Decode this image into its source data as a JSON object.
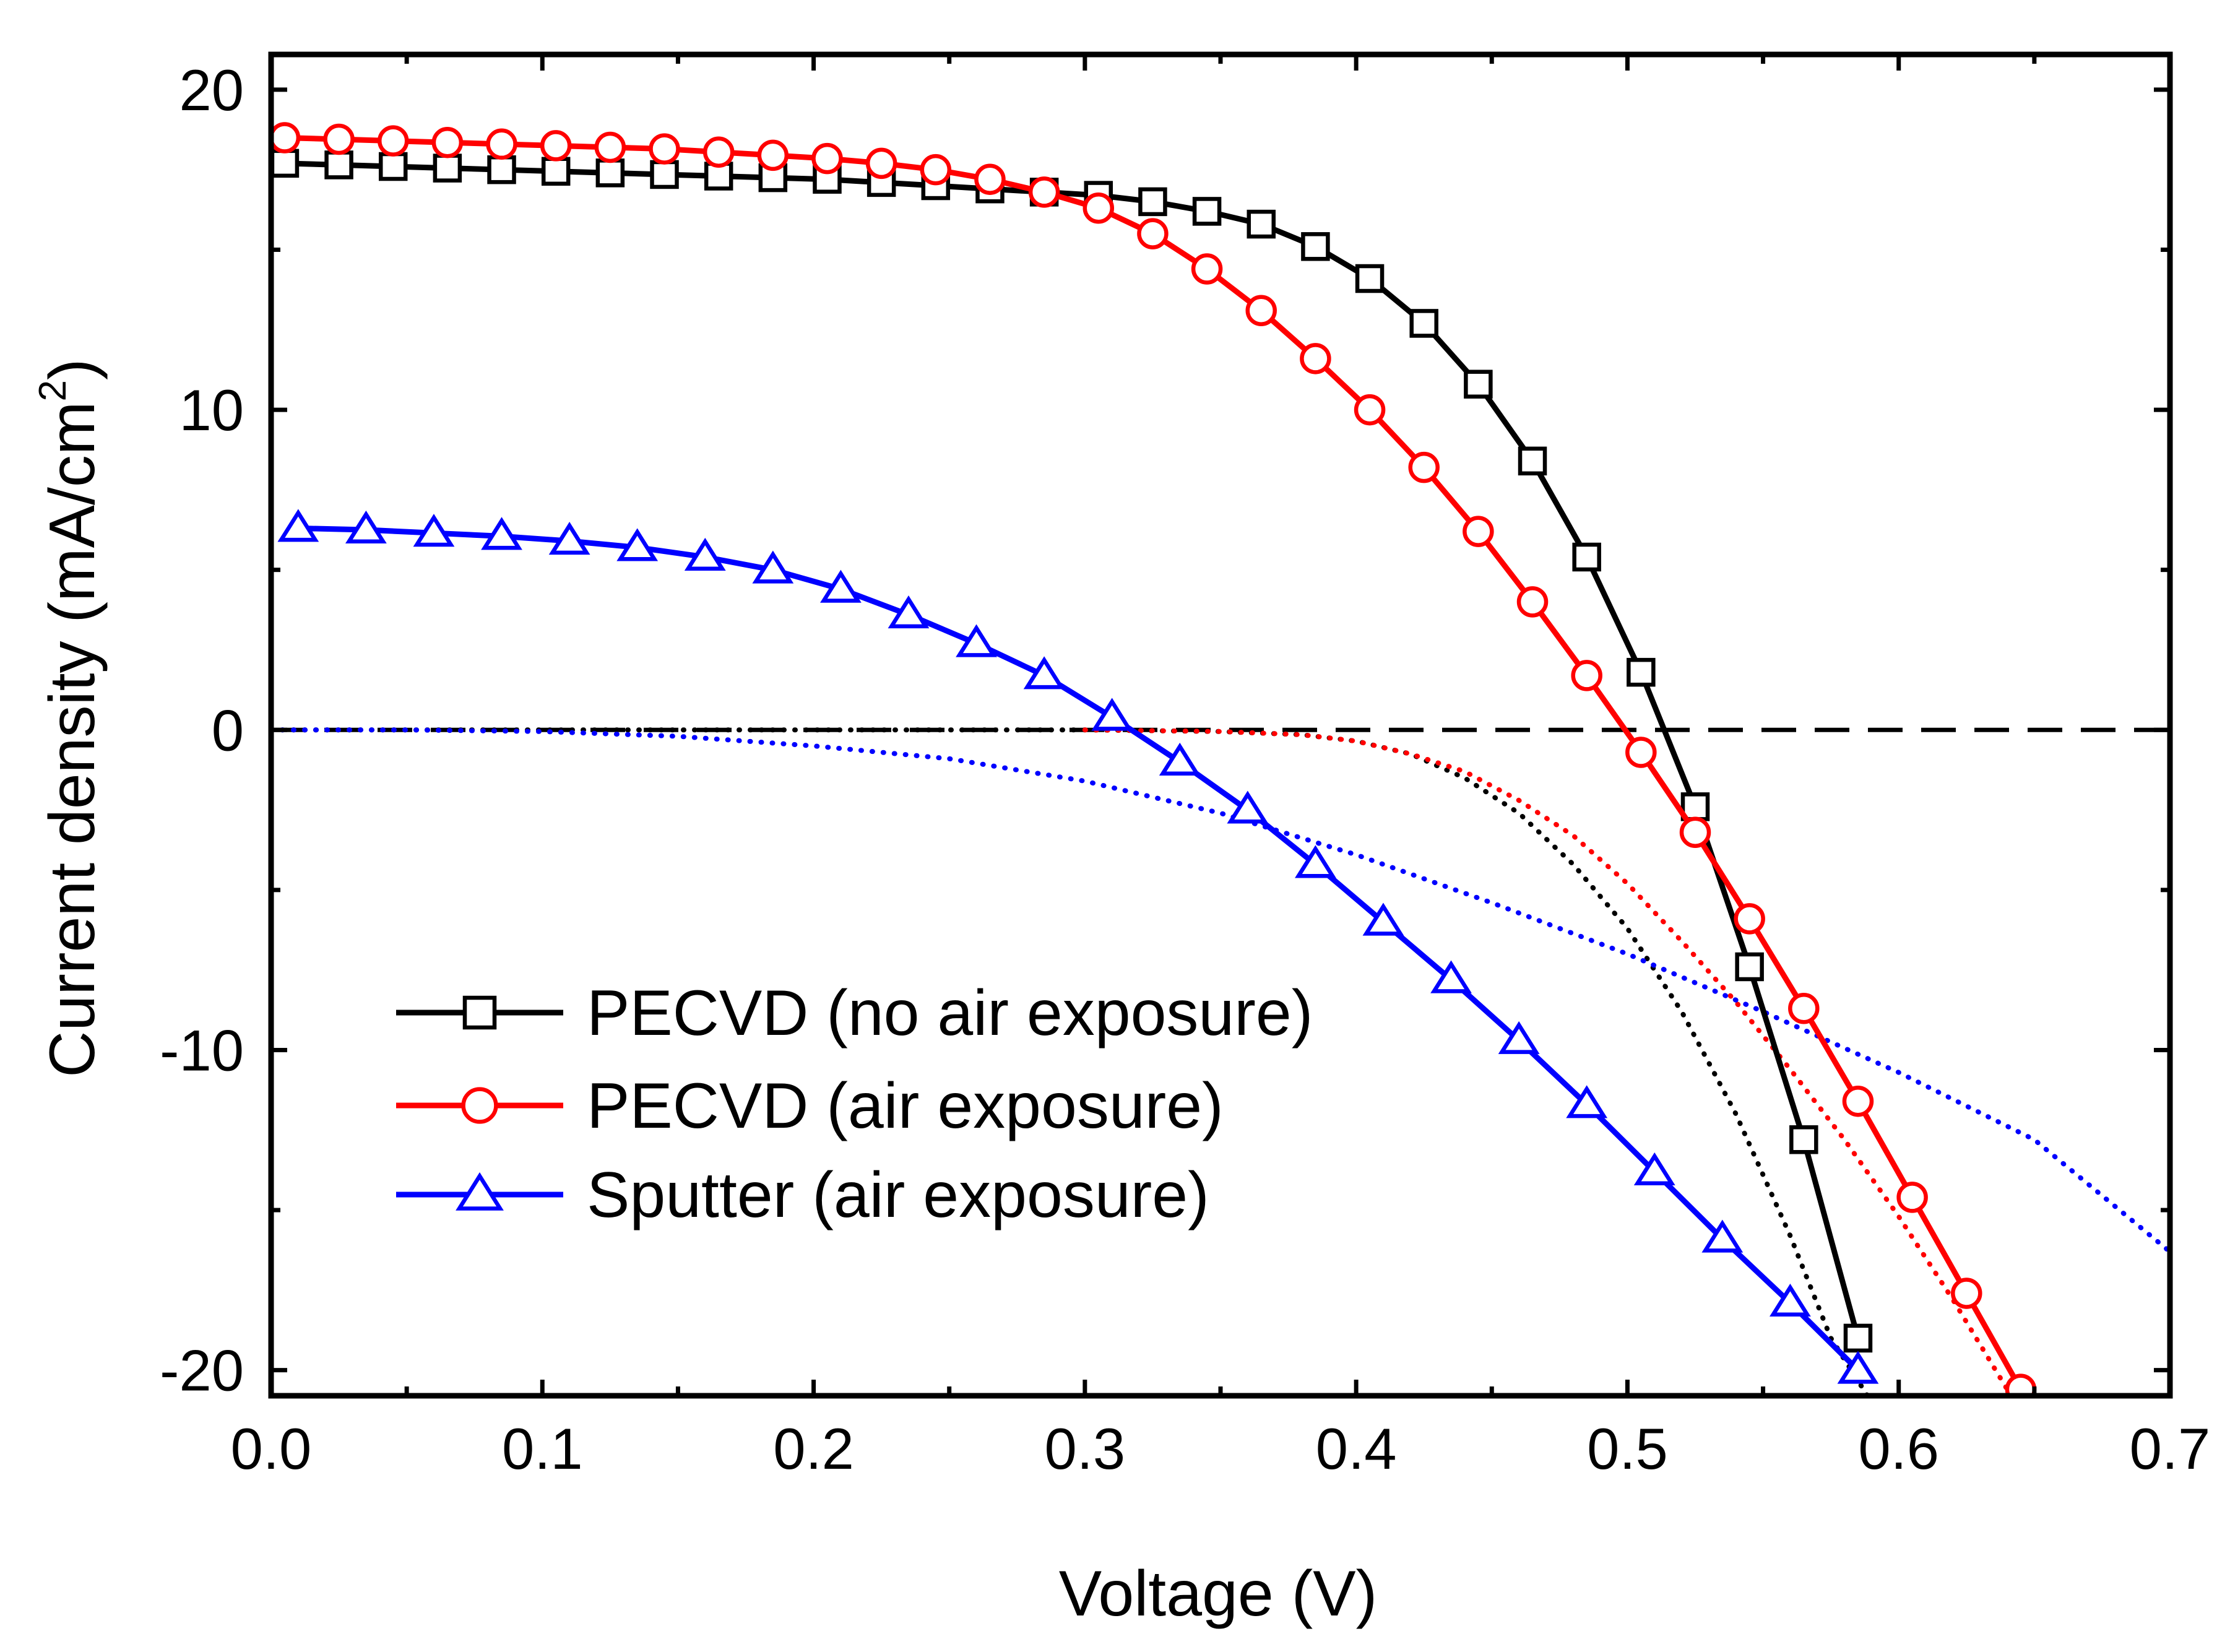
{
  "chart_data": {
    "type": "line",
    "xlabel": "Voltage (V)",
    "ylabel": {
      "main": "Current density (mA/cm",
      "sup": "2",
      "close": ")"
    },
    "xlim": [
      0.0,
      0.7
    ],
    "ylim": [
      -20.8,
      21.1
    ],
    "xticks": [
      0.0,
      0.1,
      0.2,
      0.3,
      0.4,
      0.5,
      0.6,
      0.7
    ],
    "xtick_labels": [
      "0.0",
      "0.1",
      "0.2",
      "0.3",
      "0.4",
      "0.5",
      "0.6",
      "0.7"
    ],
    "yticks": [
      -20,
      -10,
      0,
      10,
      20
    ],
    "ytick_labels": [
      "-20",
      "-10",
      "0",
      "10",
      "20"
    ],
    "x_minor_step": 0.05,
    "y_minor_step": 5,
    "grid": false,
    "legend_position": "lower-left",
    "series": [
      {
        "name": "PECVD (no air exposure)",
        "color": "#000000",
        "marker": "square",
        "x": [
          0.005,
          0.025,
          0.045,
          0.065,
          0.085,
          0.105,
          0.125,
          0.145,
          0.165,
          0.185,
          0.205,
          0.225,
          0.245,
          0.265,
          0.285,
          0.305,
          0.325,
          0.345,
          0.365,
          0.385,
          0.405,
          0.425,
          0.445,
          0.465,
          0.485,
          0.505,
          0.525,
          0.545,
          0.565,
          0.585
        ],
        "y": [
          17.7,
          17.65,
          17.6,
          17.55,
          17.5,
          17.45,
          17.4,
          17.35,
          17.3,
          17.25,
          17.2,
          17.1,
          17.0,
          16.9,
          16.8,
          16.7,
          16.5,
          16.2,
          15.8,
          15.1,
          14.1,
          12.7,
          10.8,
          8.4,
          5.4,
          1.8,
          -2.4,
          -7.4,
          -12.8,
          -19.0
        ]
      },
      {
        "name": "PECVD (air exposure)",
        "color": "#ff0000",
        "marker": "circle",
        "x": [
          0.005,
          0.025,
          0.045,
          0.065,
          0.085,
          0.105,
          0.125,
          0.145,
          0.165,
          0.185,
          0.205,
          0.225,
          0.245,
          0.265,
          0.285,
          0.305,
          0.325,
          0.345,
          0.365,
          0.385,
          0.405,
          0.425,
          0.445,
          0.465,
          0.485,
          0.505,
          0.525,
          0.545,
          0.565,
          0.585,
          0.605,
          0.625,
          0.645
        ],
        "y": [
          18.5,
          18.45,
          18.4,
          18.35,
          18.3,
          18.25,
          18.2,
          18.15,
          18.05,
          17.95,
          17.85,
          17.7,
          17.5,
          17.2,
          16.8,
          16.3,
          15.5,
          14.4,
          13.1,
          11.6,
          10.0,
          8.2,
          6.2,
          4.0,
          1.7,
          -0.7,
          -3.2,
          -5.9,
          -8.7,
          -11.6,
          -14.6,
          -17.6,
          -20.6
        ]
      },
      {
        "name": "Sputter (air exposure)",
        "color": "#0000ff",
        "marker": "triangle",
        "x": [
          0.01,
          0.035,
          0.06,
          0.085,
          0.11,
          0.135,
          0.16,
          0.185,
          0.21,
          0.235,
          0.26,
          0.285,
          0.31,
          0.335,
          0.36,
          0.385,
          0.41,
          0.435,
          0.46,
          0.485,
          0.51,
          0.535,
          0.56,
          0.585
        ],
        "y": [
          6.3,
          6.25,
          6.15,
          6.05,
          5.9,
          5.7,
          5.4,
          5.0,
          4.4,
          3.6,
          2.7,
          1.7,
          0.4,
          -1.0,
          -2.5,
          -4.2,
          -6.0,
          -7.8,
          -9.7,
          -11.7,
          -13.8,
          -15.9,
          -17.9,
          -20.0
        ]
      }
    ],
    "reference_line": {
      "y": 0,
      "style": "dashed",
      "color": "#000000"
    },
    "dark_curves": [
      {
        "color": "#000000",
        "style": "dotted",
        "x": [
          0.0,
          0.1,
          0.2,
          0.25,
          0.3,
          0.35,
          0.38,
          0.4,
          0.42,
          0.44,
          0.46,
          0.48,
          0.5,
          0.52,
          0.54,
          0.56,
          0.575,
          0.59
        ],
        "y": [
          0,
          0,
          0,
          0,
          0,
          -0.05,
          -0.15,
          -0.35,
          -0.75,
          -1.5,
          -2.6,
          -4.2,
          -6.2,
          -8.8,
          -12.0,
          -15.8,
          -19.0,
          -21.0
        ]
      },
      {
        "color": "#ff0000",
        "style": "dotted",
        "x": [
          0.3,
          0.35,
          0.38,
          0.4,
          0.42,
          0.44,
          0.46,
          0.48,
          0.5,
          0.52,
          0.54,
          0.56,
          0.58,
          0.6,
          0.62,
          0.64
        ],
        "y": [
          0,
          -0.05,
          -0.15,
          -0.35,
          -0.75,
          -1.3,
          -2.2,
          -3.3,
          -4.8,
          -6.6,
          -8.5,
          -10.6,
          -12.8,
          -15.2,
          -17.8,
          -20.6
        ]
      },
      {
        "color": "#0000ff",
        "style": "dotted",
        "x": [
          0.0,
          0.05,
          0.1,
          0.15,
          0.2,
          0.25,
          0.3,
          0.35,
          0.4,
          0.45,
          0.5,
          0.55,
          0.6,
          0.65,
          0.7
        ],
        "y": [
          0,
          0,
          -0.05,
          -0.2,
          -0.5,
          -0.9,
          -1.6,
          -2.6,
          -3.9,
          -5.4,
          -7.0,
          -8.8,
          -10.7,
          -12.8,
          -16.3
        ]
      }
    ]
  }
}
